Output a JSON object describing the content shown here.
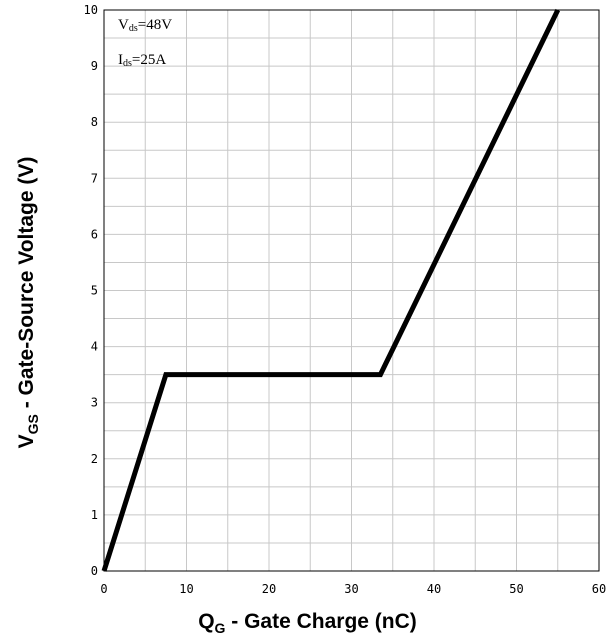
{
  "chart_data": {
    "type": "line",
    "xlabel": {
      "main": "Q",
      "sub": "G",
      "rest": " - Gate Charge (nC)"
    },
    "ylabel": {
      "main": "V",
      "sub": "GS",
      "rest": " - Gate-Source Voltage (V)"
    },
    "xlim": [
      0,
      60
    ],
    "ylim": [
      0,
      10
    ],
    "x_ticks": [
      "0",
      "10",
      "20",
      "30",
      "40",
      "50",
      "60"
    ],
    "y_ticks": [
      "0",
      "1",
      "2",
      "3",
      "4",
      "5",
      "6",
      "7",
      "8",
      "9",
      "10"
    ],
    "grid": true,
    "annotations": [
      {
        "main": "V",
        "sub": "ds",
        "rest": "=48V"
      },
      {
        "main": "I",
        "sub": "ds",
        "rest": "=25A"
      }
    ],
    "series": [
      {
        "x": [
          0,
          7.5,
          33.5,
          55
        ],
        "y": [
          0,
          3.5,
          3.5,
          10
        ]
      }
    ],
    "line_color": "#000000",
    "grid_color": "#c8c8c8"
  }
}
